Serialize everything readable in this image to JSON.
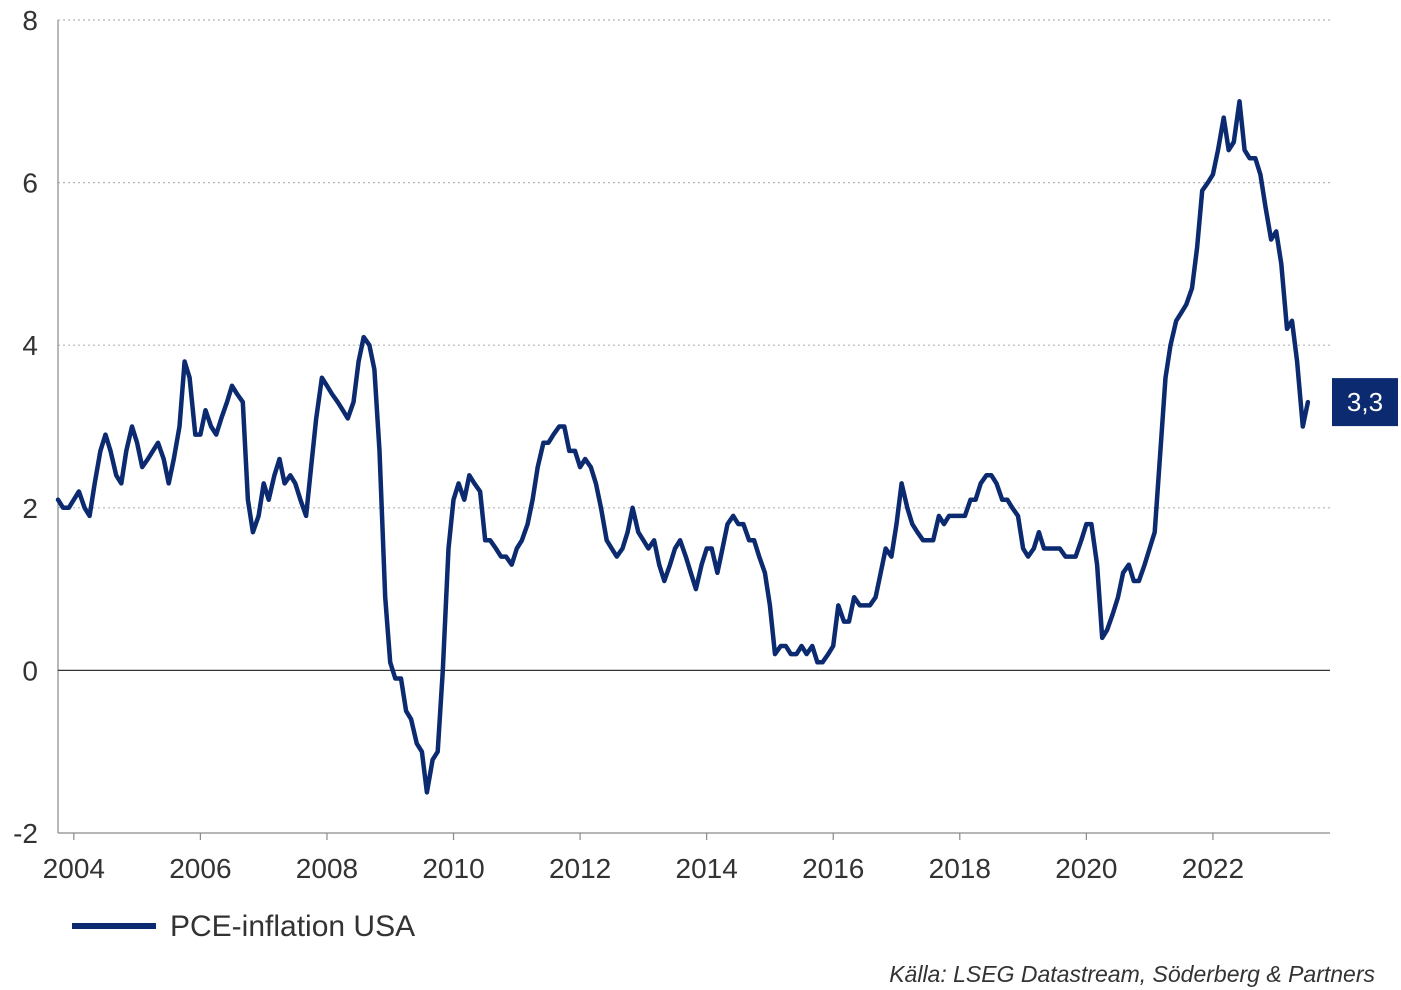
{
  "chart_data": {
    "type": "line",
    "title": "",
    "xlabel": "",
    "ylabel": "",
    "xlim": [
      2003.75,
      2023.85
    ],
    "ylim": [
      -2,
      8
    ],
    "y_ticks": [
      -2,
      0,
      2,
      4,
      6,
      8
    ],
    "y_tick_labels": [
      "-2",
      "0",
      "2",
      "4",
      "6",
      "8"
    ],
    "x_ticks": [
      2004,
      2006,
      2008,
      2010,
      2012,
      2014,
      2016,
      2018,
      2020,
      2022
    ],
    "x_tick_labels": [
      "2004",
      "2006",
      "2008",
      "2010",
      "2012",
      "2014",
      "2016",
      "2018",
      "2020",
      "2022"
    ],
    "grid": "horizontal dotted",
    "legend_position": "bottom-left",
    "series": [
      {
        "name": "PCE-inflation USA",
        "color": "#0b2a6f",
        "points": [
          [
            2003.75,
            2.1
          ],
          [
            2003.83,
            2.0
          ],
          [
            2003.92,
            2.0
          ],
          [
            2004.0,
            2.1
          ],
          [
            2004.08,
            2.2
          ],
          [
            2004.17,
            2.0
          ],
          [
            2004.25,
            1.9
          ],
          [
            2004.33,
            2.3
          ],
          [
            2004.42,
            2.7
          ],
          [
            2004.5,
            2.9
          ],
          [
            2004.58,
            2.7
          ],
          [
            2004.67,
            2.4
          ],
          [
            2004.75,
            2.3
          ],
          [
            2004.83,
            2.7
          ],
          [
            2004.92,
            3.0
          ],
          [
            2005.0,
            2.8
          ],
          [
            2005.08,
            2.5
          ],
          [
            2005.17,
            2.6
          ],
          [
            2005.25,
            2.7
          ],
          [
            2005.33,
            2.8
          ],
          [
            2005.42,
            2.6
          ],
          [
            2005.5,
            2.3
          ],
          [
            2005.58,
            2.6
          ],
          [
            2005.67,
            3.0
          ],
          [
            2005.75,
            3.8
          ],
          [
            2005.83,
            3.6
          ],
          [
            2005.92,
            2.9
          ],
          [
            2006.0,
            2.9
          ],
          [
            2006.08,
            3.2
          ],
          [
            2006.17,
            3.0
          ],
          [
            2006.25,
            2.9
          ],
          [
            2006.33,
            3.1
          ],
          [
            2006.42,
            3.3
          ],
          [
            2006.5,
            3.5
          ],
          [
            2006.58,
            3.4
          ],
          [
            2006.67,
            3.3
          ],
          [
            2006.75,
            2.1
          ],
          [
            2006.83,
            1.7
          ],
          [
            2006.92,
            1.9
          ],
          [
            2007.0,
            2.3
          ],
          [
            2007.08,
            2.1
          ],
          [
            2007.17,
            2.4
          ],
          [
            2007.25,
            2.6
          ],
          [
            2007.33,
            2.3
          ],
          [
            2007.42,
            2.4
          ],
          [
            2007.5,
            2.3
          ],
          [
            2007.58,
            2.1
          ],
          [
            2007.67,
            1.9
          ],
          [
            2007.75,
            2.5
          ],
          [
            2007.83,
            3.1
          ],
          [
            2007.92,
            3.6
          ],
          [
            2008.0,
            3.5
          ],
          [
            2008.08,
            3.4
          ],
          [
            2008.17,
            3.3
          ],
          [
            2008.25,
            3.2
          ],
          [
            2008.33,
            3.1
          ],
          [
            2008.42,
            3.3
          ],
          [
            2008.5,
            3.8
          ],
          [
            2008.58,
            4.1
          ],
          [
            2008.67,
            4.0
          ],
          [
            2008.75,
            3.7
          ],
          [
            2008.83,
            2.7
          ],
          [
            2008.92,
            0.9
          ],
          [
            2009.0,
            0.1
          ],
          [
            2009.08,
            -0.1
          ],
          [
            2009.17,
            -0.1
          ],
          [
            2009.25,
            -0.5
          ],
          [
            2009.33,
            -0.6
          ],
          [
            2009.42,
            -0.9
          ],
          [
            2009.5,
            -1.0
          ],
          [
            2009.58,
            -1.5
          ],
          [
            2009.67,
            -1.1
          ],
          [
            2009.75,
            -1.0
          ],
          [
            2009.83,
            0.0
          ],
          [
            2009.92,
            1.5
          ],
          [
            2010.0,
            2.1
          ],
          [
            2010.08,
            2.3
          ],
          [
            2010.17,
            2.1
          ],
          [
            2010.25,
            2.4
          ],
          [
            2010.33,
            2.3
          ],
          [
            2010.42,
            2.2
          ],
          [
            2010.5,
            1.6
          ],
          [
            2010.58,
            1.6
          ],
          [
            2010.67,
            1.5
          ],
          [
            2010.75,
            1.4
          ],
          [
            2010.83,
            1.4
          ],
          [
            2010.92,
            1.3
          ],
          [
            2011.0,
            1.5
          ],
          [
            2011.08,
            1.6
          ],
          [
            2011.17,
            1.8
          ],
          [
            2011.25,
            2.1
          ],
          [
            2011.33,
            2.5
          ],
          [
            2011.42,
            2.8
          ],
          [
            2011.5,
            2.8
          ],
          [
            2011.58,
            2.9
          ],
          [
            2011.67,
            3.0
          ],
          [
            2011.75,
            3.0
          ],
          [
            2011.83,
            2.7
          ],
          [
            2011.92,
            2.7
          ],
          [
            2012.0,
            2.5
          ],
          [
            2012.08,
            2.6
          ],
          [
            2012.17,
            2.5
          ],
          [
            2012.25,
            2.3
          ],
          [
            2012.33,
            2.0
          ],
          [
            2012.42,
            1.6
          ],
          [
            2012.5,
            1.5
          ],
          [
            2012.58,
            1.4
          ],
          [
            2012.67,
            1.5
          ],
          [
            2012.75,
            1.7
          ],
          [
            2012.83,
            2.0
          ],
          [
            2012.92,
            1.7
          ],
          [
            2013.0,
            1.6
          ],
          [
            2013.08,
            1.5
          ],
          [
            2013.17,
            1.6
          ],
          [
            2013.25,
            1.3
          ],
          [
            2013.33,
            1.1
          ],
          [
            2013.42,
            1.3
          ],
          [
            2013.5,
            1.5
          ],
          [
            2013.58,
            1.6
          ],
          [
            2013.67,
            1.4
          ],
          [
            2013.75,
            1.2
          ],
          [
            2013.83,
            1.0
          ],
          [
            2013.92,
            1.3
          ],
          [
            2014.0,
            1.5
          ],
          [
            2014.08,
            1.5
          ],
          [
            2014.17,
            1.2
          ],
          [
            2014.25,
            1.5
          ],
          [
            2014.33,
            1.8
          ],
          [
            2014.42,
            1.9
          ],
          [
            2014.5,
            1.8
          ],
          [
            2014.58,
            1.8
          ],
          [
            2014.67,
            1.6
          ],
          [
            2014.75,
            1.6
          ],
          [
            2014.83,
            1.4
          ],
          [
            2014.92,
            1.2
          ],
          [
            2015.0,
            0.8
          ],
          [
            2015.08,
            0.2
          ],
          [
            2015.17,
            0.3
          ],
          [
            2015.25,
            0.3
          ],
          [
            2015.33,
            0.2
          ],
          [
            2015.42,
            0.2
          ],
          [
            2015.5,
            0.3
          ],
          [
            2015.58,
            0.2
          ],
          [
            2015.67,
            0.3
          ],
          [
            2015.75,
            0.1
          ],
          [
            2015.83,
            0.1
          ],
          [
            2015.92,
            0.2
          ],
          [
            2016.0,
            0.3
          ],
          [
            2016.08,
            0.8
          ],
          [
            2016.17,
            0.6
          ],
          [
            2016.25,
            0.6
          ],
          [
            2016.33,
            0.9
          ],
          [
            2016.42,
            0.8
          ],
          [
            2016.5,
            0.8
          ],
          [
            2016.58,
            0.8
          ],
          [
            2016.67,
            0.9
          ],
          [
            2016.75,
            1.2
          ],
          [
            2016.83,
            1.5
          ],
          [
            2016.92,
            1.4
          ],
          [
            2017.0,
            1.8
          ],
          [
            2017.08,
            2.3
          ],
          [
            2017.17,
            2.0
          ],
          [
            2017.25,
            1.8
          ],
          [
            2017.33,
            1.7
          ],
          [
            2017.42,
            1.6
          ],
          [
            2017.5,
            1.6
          ],
          [
            2017.58,
            1.6
          ],
          [
            2017.67,
            1.9
          ],
          [
            2017.75,
            1.8
          ],
          [
            2017.83,
            1.9
          ],
          [
            2017.92,
            1.9
          ],
          [
            2018.0,
            1.9
          ],
          [
            2018.08,
            1.9
          ],
          [
            2018.17,
            2.1
          ],
          [
            2018.25,
            2.1
          ],
          [
            2018.33,
            2.3
          ],
          [
            2018.42,
            2.4
          ],
          [
            2018.5,
            2.4
          ],
          [
            2018.58,
            2.3
          ],
          [
            2018.67,
            2.1
          ],
          [
            2018.75,
            2.1
          ],
          [
            2018.83,
            2.0
          ],
          [
            2018.92,
            1.9
          ],
          [
            2019.0,
            1.5
          ],
          [
            2019.08,
            1.4
          ],
          [
            2019.17,
            1.5
          ],
          [
            2019.25,
            1.7
          ],
          [
            2019.33,
            1.5
          ],
          [
            2019.42,
            1.5
          ],
          [
            2019.5,
            1.5
          ],
          [
            2019.58,
            1.5
          ],
          [
            2019.67,
            1.4
          ],
          [
            2019.75,
            1.4
          ],
          [
            2019.83,
            1.4
          ],
          [
            2019.92,
            1.6
          ],
          [
            2020.0,
            1.8
          ],
          [
            2020.08,
            1.8
          ],
          [
            2020.17,
            1.3
          ],
          [
            2020.25,
            0.4
          ],
          [
            2020.33,
            0.5
          ],
          [
            2020.42,
            0.7
          ],
          [
            2020.5,
            0.9
          ],
          [
            2020.58,
            1.2
          ],
          [
            2020.67,
            1.3
          ],
          [
            2020.75,
            1.1
          ],
          [
            2020.83,
            1.1
          ],
          [
            2020.92,
            1.3
          ],
          [
            2021.0,
            1.5
          ],
          [
            2021.08,
            1.7
          ],
          [
            2021.17,
            2.7
          ],
          [
            2021.25,
            3.6
          ],
          [
            2021.33,
            4.0
          ],
          [
            2021.42,
            4.3
          ],
          [
            2021.5,
            4.4
          ],
          [
            2021.58,
            4.5
          ],
          [
            2021.67,
            4.7
          ],
          [
            2021.75,
            5.2
          ],
          [
            2021.83,
            5.9
          ],
          [
            2021.92,
            6.0
          ],
          [
            2022.0,
            6.1
          ],
          [
            2022.08,
            6.4
          ],
          [
            2022.17,
            6.8
          ],
          [
            2022.25,
            6.4
          ],
          [
            2022.33,
            6.5
          ],
          [
            2022.42,
            7.0
          ],
          [
            2022.5,
            6.4
          ],
          [
            2022.58,
            6.3
          ],
          [
            2022.67,
            6.3
          ],
          [
            2022.75,
            6.1
          ],
          [
            2022.83,
            5.7
          ],
          [
            2022.92,
            5.3
          ],
          [
            2023.0,
            5.4
          ],
          [
            2023.08,
            5.0
          ],
          [
            2023.17,
            4.2
          ],
          [
            2023.25,
            4.3
          ],
          [
            2023.33,
            3.8
          ],
          [
            2023.42,
            3.0
          ],
          [
            2023.5,
            3.3
          ]
        ]
      }
    ],
    "end_label": {
      "value": "3,3",
      "background": "#0b2a6f",
      "text_color": "#ffffff"
    }
  },
  "source_note": "Källa: LSEG Datastream, Söderberg & Partners"
}
